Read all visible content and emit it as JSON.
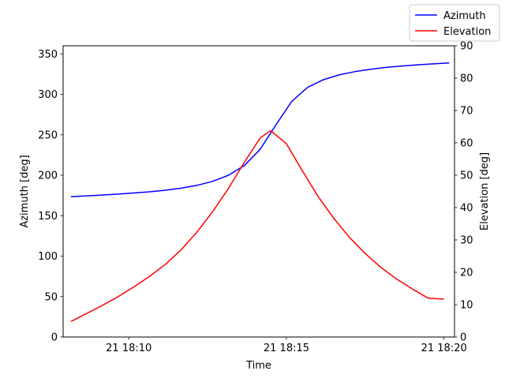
{
  "chart_data": {
    "type": "line",
    "title": "",
    "xlabel": "Time",
    "ylabel_left": "Azimuth [deg]",
    "ylabel_right": "Elevation [deg]",
    "x_ticks": [
      "21 18:10",
      "21 18:15",
      "21 18:20"
    ],
    "x_tick_values": [
      600,
      900,
      1200
    ],
    "x_unit": "seconds after 18:00 on day 21",
    "xlim": [
      475,
      1220
    ],
    "ylim_left": [
      0,
      360
    ],
    "ylim_right": [
      0,
      90
    ],
    "yticks_left": [
      0,
      50,
      100,
      150,
      200,
      250,
      300,
      350
    ],
    "yticks_right": [
      0,
      10,
      20,
      30,
      40,
      50,
      60,
      70,
      80,
      90
    ],
    "grid": false,
    "legend_position": "top-right",
    "series": [
      {
        "name": "Azimuth",
        "axis": "left",
        "color": "#0000ff",
        "x": [
          490,
          520,
          550,
          580,
          610,
          640,
          670,
          700,
          730,
          760,
          790,
          820,
          850,
          880,
          910,
          940,
          970,
          1000,
          1030,
          1060,
          1090,
          1120,
          1150,
          1180,
          1210
        ],
        "y": [
          173.5,
          174.5,
          175.5,
          176.7,
          178,
          179.5,
          181.5,
          184,
          187.5,
          192.5,
          200,
          212,
          232,
          262,
          291,
          308.5,
          318,
          324,
          328,
          331,
          333.3,
          335,
          336.5,
          337.7,
          338.8
        ]
      },
      {
        "name": "Elevation",
        "axis": "right",
        "color": "#ff0000",
        "x": [
          490,
          520,
          550,
          580,
          610,
          640,
          670,
          700,
          730,
          760,
          790,
          820,
          850,
          870,
          900,
          930,
          960,
          990,
          1020,
          1050,
          1080,
          1110,
          1140,
          1170,
          1200
        ],
        "y": [
          4.8,
          7.3,
          9.8,
          12.5,
          15.5,
          18.8,
          22.5,
          27,
          32.5,
          38.8,
          46,
          54,
          61.5,
          63.8,
          59.7,
          51.5,
          43.5,
          36.7,
          30.8,
          25.8,
          21.5,
          17.9,
          14.8,
          12,
          11.7
        ]
      }
    ]
  }
}
